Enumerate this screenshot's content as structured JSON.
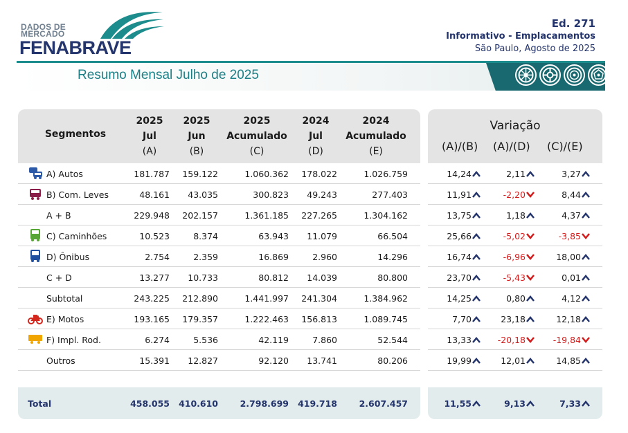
{
  "header": {
    "logo_small_line1": "DADOS DE",
    "logo_small_line2": "MERCADO",
    "logo_big": "FENABRAVE",
    "edition": "Ed. 271",
    "title": "Informativo - Emplacamentos",
    "place_date": "São Paulo, Agosto de 2025"
  },
  "banner": {
    "title": "Resumo Mensal Julho de 2025"
  },
  "colors": {
    "navy": "#24346c",
    "teal": "#1d7f86",
    "positive_arrow": "#24346c",
    "negative": "#d41b1b"
  },
  "table": {
    "segment_header": "Segmentos",
    "columns": [
      {
        "line1": "2025",
        "line2": "Jul",
        "line3": "(A)"
      },
      {
        "line1": "2025",
        "line2": "Jun",
        "line3": "(B)"
      },
      {
        "line1": "2025",
        "line2": "Acumulado",
        "line3": "(C)"
      },
      {
        "line1": "2024",
        "line2": "Jul",
        "line3": "(D)"
      },
      {
        "line1": "2024",
        "line2": "Acumulado",
        "line3": "(E)"
      }
    ],
    "rows": [
      {
        "segment": "A) Autos",
        "icon": "car-icon",
        "a": "181.787",
        "b": "159.122",
        "c": "1.060.362",
        "d": "178.022",
        "e": "1.026.759"
      },
      {
        "segment": "B) Com. Leves",
        "icon": "van-icon",
        "a": "48.161",
        "b": "43.035",
        "c": "300.823",
        "d": "49.243",
        "e": "277.403"
      },
      {
        "segment": "A + B",
        "icon": "",
        "a": "229.948",
        "b": "202.157",
        "c": "1.361.185",
        "d": "227.265",
        "e": "1.304.162"
      },
      {
        "segment": "C) Caminhões",
        "icon": "truck-icon",
        "a": "10.523",
        "b": "8.374",
        "c": "63.943",
        "d": "11.079",
        "e": "66.504"
      },
      {
        "segment": "D) Ônibus",
        "icon": "bus-icon",
        "a": "2.754",
        "b": "2.359",
        "c": "16.869",
        "d": "2.960",
        "e": "14.296"
      },
      {
        "segment": "C + D",
        "icon": "",
        "a": "13.277",
        "b": "10.733",
        "c": "80.812",
        "d": "14.039",
        "e": "80.800"
      },
      {
        "segment": "Subtotal",
        "icon": "",
        "a": "243.225",
        "b": "212.890",
        "c": "1.441.997",
        "d": "241.304",
        "e": "1.384.962"
      },
      {
        "segment": "E) Motos",
        "icon": "motorcycle-icon",
        "a": "193.165",
        "b": "179.357",
        "c": "1.222.463",
        "d": "156.813",
        "e": "1.089.745"
      },
      {
        "segment": "F) Impl. Rod.",
        "icon": "trailer-icon",
        "a": "6.274",
        "b": "5.536",
        "c": "42.119",
        "d": "7.860",
        "e": "52.544"
      },
      {
        "segment": "Outros",
        "icon": "",
        "a": "15.391",
        "b": "12.827",
        "c": "92.120",
        "d": "13.741",
        "e": "80.206"
      }
    ],
    "total": {
      "segment": "Total",
      "a": "458.055",
      "b": "410.610",
      "c": "2.798.699",
      "d": "419.718",
      "e": "2.607.457"
    }
  },
  "variation": {
    "title": "Variação",
    "columns": [
      "(A)/(B)",
      "(A)/(D)",
      "(C)/(E)"
    ],
    "rows": [
      [
        "14,24",
        "2,11",
        "3,27"
      ],
      [
        "11,91",
        "-2,20",
        "8,44"
      ],
      [
        "13,75",
        "1,18",
        "4,37"
      ],
      [
        "25,66",
        "-5,02",
        "-3,85"
      ],
      [
        "16,74",
        "-6,96",
        "18,00"
      ],
      [
        "23,70",
        "-5,43",
        "0,01"
      ],
      [
        "14,25",
        "0,80",
        "4,12"
      ],
      [
        "7,70",
        "23,18",
        "12,18"
      ],
      [
        "13,33",
        "-20,18",
        "-19,84"
      ],
      [
        "19,99",
        "12,01",
        "14,85"
      ]
    ],
    "total": [
      "11,55",
      "9,13",
      "7,33"
    ]
  }
}
